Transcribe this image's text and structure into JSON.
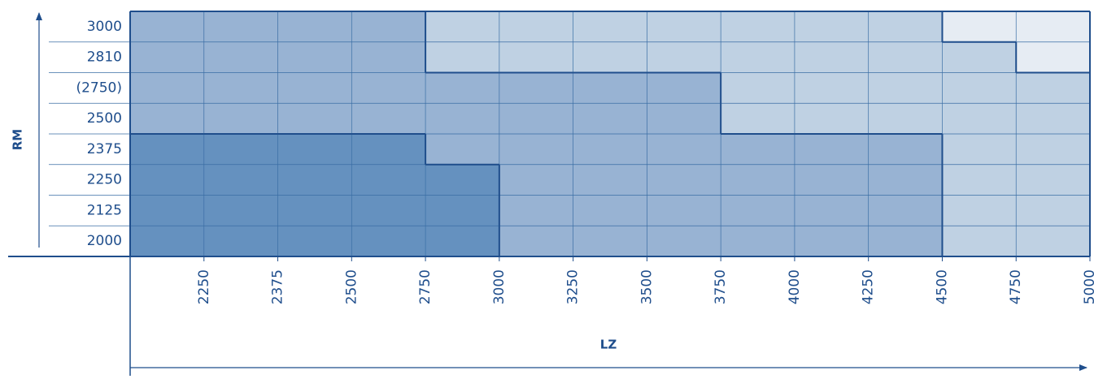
{
  "y_axis_label": "RM",
  "x_axis_label": "LZ",
  "rows": [
    "3000",
    "2810",
    "(2750)",
    "2500",
    "2375",
    "2250",
    "2125",
    "2000"
  ],
  "columns": [
    "2250",
    "2375",
    "2500",
    "2750",
    "3000",
    "3250",
    "3500",
    "3750",
    "4000",
    "4250",
    "4500",
    "4750",
    "5000"
  ],
  "zone_colors": [
    "#6591bf",
    "#98b3d3",
    "#bfd1e3",
    "#e6ecf3"
  ],
  "zones": [
    [
      1,
      1,
      1,
      1,
      2,
      2,
      2,
      2,
      2,
      2,
      2,
      3,
      3
    ],
    [
      1,
      1,
      1,
      1,
      2,
      2,
      2,
      2,
      2,
      2,
      2,
      2,
      3
    ],
    [
      1,
      1,
      1,
      1,
      1,
      1,
      1,
      1,
      2,
      2,
      2,
      2,
      2
    ],
    [
      1,
      1,
      1,
      1,
      1,
      1,
      1,
      1,
      2,
      2,
      2,
      2,
      2
    ],
    [
      0,
      0,
      0,
      0,
      1,
      1,
      1,
      1,
      1,
      1,
      1,
      2,
      2
    ],
    [
      0,
      0,
      0,
      0,
      0,
      1,
      1,
      1,
      1,
      1,
      1,
      2,
      2
    ],
    [
      0,
      0,
      0,
      0,
      0,
      1,
      1,
      1,
      1,
      1,
      1,
      2,
      2
    ],
    [
      0,
      0,
      0,
      0,
      0,
      1,
      1,
      1,
      1,
      1,
      1,
      2,
      2
    ]
  ]
}
